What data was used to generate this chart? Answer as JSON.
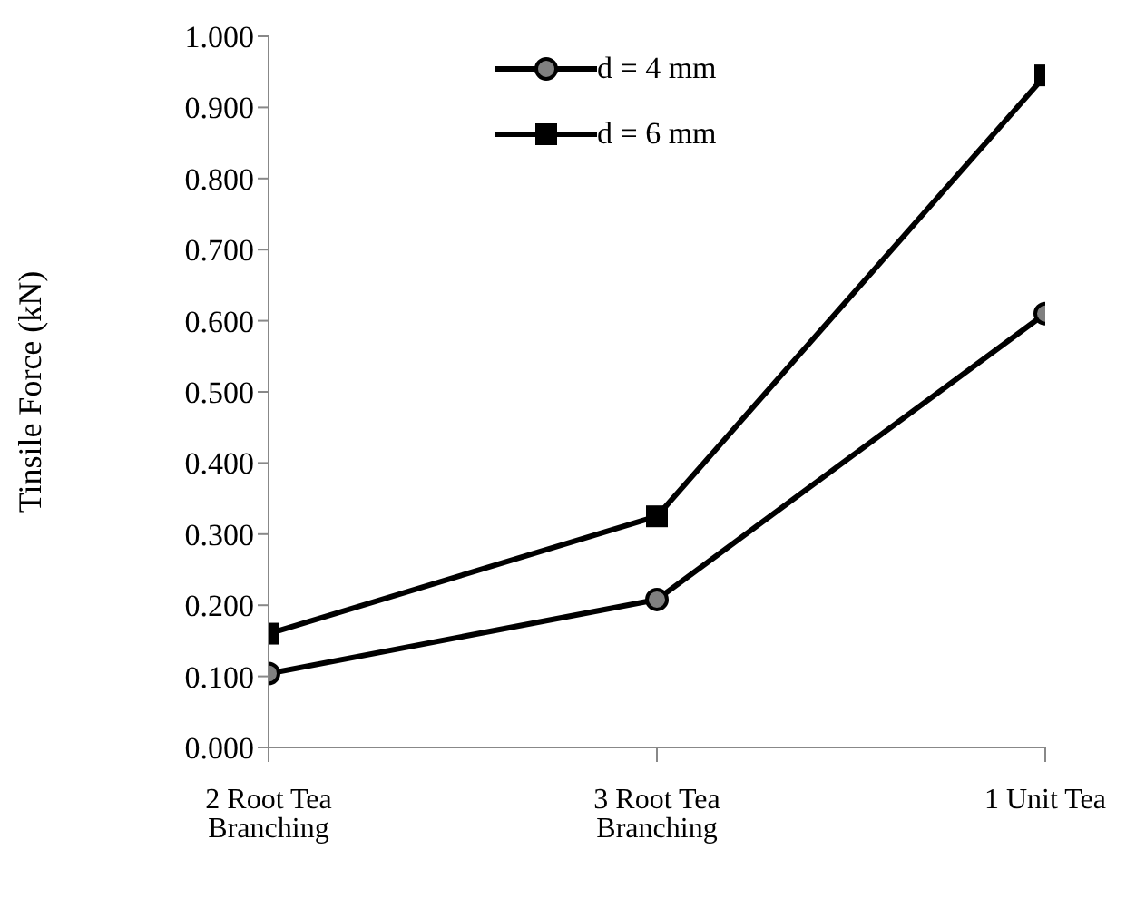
{
  "chart_data": {
    "type": "line",
    "ylabel": "Tinsile Force (kN)",
    "categories": [
      "2 Root Tea Branching",
      "3 Root Tea Branching",
      "1 Unit Tea"
    ],
    "series": [
      {
        "name": "d = 4 mm",
        "color": "#000000",
        "marker": "circle",
        "values": [
          0.104,
          0.208,
          0.61
        ]
      },
      {
        "name": "d = 6 mm",
        "color": "#000000",
        "marker": "square",
        "values": [
          0.16,
          0.325,
          0.945
        ]
      }
    ],
    "ylim": [
      0,
      1
    ],
    "yticks": [
      {
        "value": 0,
        "label": "0.000"
      },
      {
        "value": 0.1,
        "label": "0.100"
      },
      {
        "value": 0.2,
        "label": "0.200"
      },
      {
        "value": 0.3,
        "label": "0.300"
      },
      {
        "value": 0.4,
        "label": "0.400"
      },
      {
        "value": 0.5,
        "label": "0.500"
      },
      {
        "value": 0.6,
        "label": "0.600"
      },
      {
        "value": 0.7,
        "label": "0.700"
      },
      {
        "value": 0.8,
        "label": "0.800"
      },
      {
        "value": 0.9,
        "label": "0.900"
      },
      {
        "value": 1,
        "label": "1.000"
      }
    ],
    "grid": false,
    "legend": "top",
    "line_style": "solid"
  }
}
